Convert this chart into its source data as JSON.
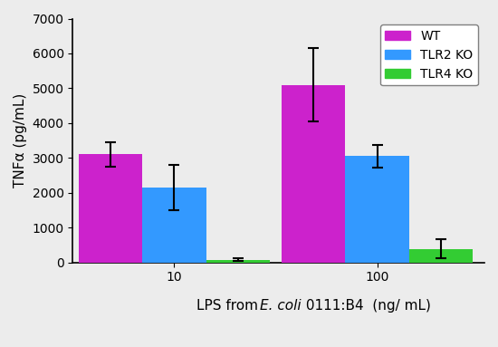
{
  "groups": [
    "10",
    "100"
  ],
  "series": [
    "WT",
    "TLR2 KO",
    "TLR4 KO"
  ],
  "values": [
    [
      3100,
      2150,
      70
    ],
    [
      5100,
      3050,
      390
    ]
  ],
  "errors": [
    [
      350,
      650,
      40
    ],
    [
      1050,
      330,
      280
    ]
  ],
  "colors": [
    "#cc22cc",
    "#3399ff",
    "#33cc33"
  ],
  "ylabel": "TNFα (pg/mL)",
  "ylim": [
    0,
    7000
  ],
  "yticks": [
    0,
    1000,
    2000,
    3000,
    4000,
    5000,
    6000,
    7000
  ],
  "bar_width": 0.22,
  "group_positions": [
    0.35,
    1.05
  ],
  "legend_labels": [
    "WT",
    "TLR2 KO",
    "TLR4 KO"
  ],
  "background_color": "#ececec",
  "axis_fontsize": 11,
  "tick_fontsize": 10
}
